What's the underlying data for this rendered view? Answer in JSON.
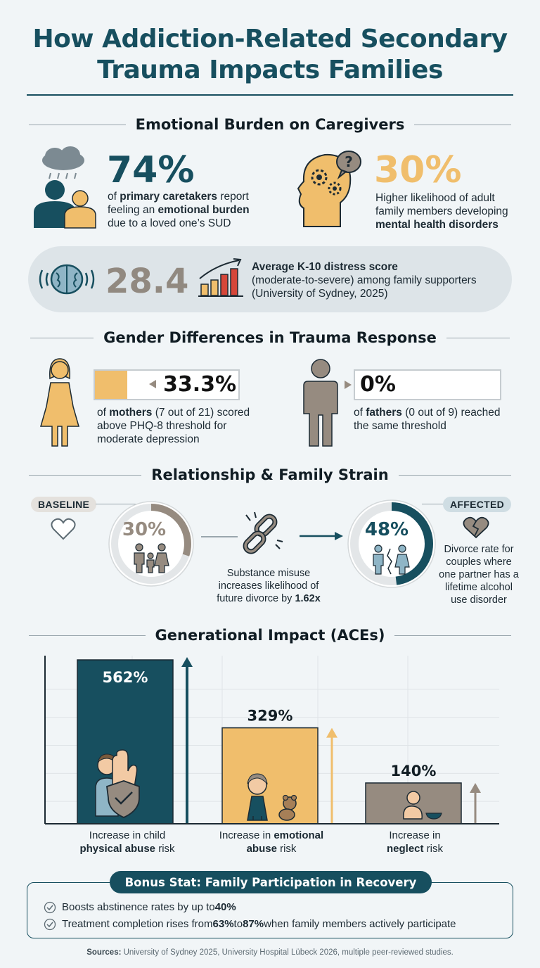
{
  "title_line1": "How Addiction-Related Secondary",
  "title_line2": "Trauma Impacts Families",
  "emotional": {
    "heading": "Emotional Burden on Caregivers",
    "stat1": {
      "value": "74%",
      "t1": "of ",
      "b1": "primary caretakers",
      "t2": " report feeling an ",
      "b2": "emotional burden",
      "t3": " due to a loved one’s SUD"
    },
    "stat2": {
      "value": "30%",
      "t1": "Higher likelihood of adult family members developing ",
      "b1": "mental health disorders"
    },
    "k10": {
      "value": "28.4",
      "title": "Average K-10 distress score",
      "line2": "(moderate-to-severe) among family supporters",
      "line3": "(University of Sydney, 2025)"
    }
  },
  "gender": {
    "heading": "Gender Differences in Trauma Response",
    "mothers": {
      "value": "33.3%",
      "fraction": 0.333,
      "t1": "of ",
      "b1": "mothers",
      "t2": " (7 out of 21) scored above PHQ-8 threshold for moderate depression"
    },
    "fathers": {
      "value": "0%",
      "fraction": 0,
      "t1": "of ",
      "b1": "fathers",
      "t2": " (0 out of 9) reached the same threshold"
    }
  },
  "relationship": {
    "heading": "Relationship & Family Strain",
    "baseline_label": "BASELINE",
    "baseline_value": "30%",
    "baseline_fraction": 0.3,
    "affected_label": "AFFECTED",
    "affected_value": "48%",
    "affected_fraction": 0.48,
    "middle_t1": "Substance misuse increases likelihood of future divorce by ",
    "middle_b1": "1.62x",
    "affected_desc": "Divorce rate for couples where one partner has a lifetime alcohol use disorder"
  },
  "generational": {
    "heading": "Generational Impact (ACEs)",
    "chart_data": {
      "type": "bar",
      "categories": [
        "Increase in child physical abuse risk",
        "Increase in emotional abuse risk",
        "Increase in neglect risk"
      ],
      "values": [
        562,
        329,
        140
      ],
      "value_labels": [
        "562%",
        "329%",
        "140%"
      ],
      "ylim": [
        0,
        600
      ],
      "grid": true,
      "colors": [
        "#174f5f",
        "#f0be6c",
        "#968b80"
      ]
    },
    "labels": [
      {
        "t1": "Increase in child",
        "b1": "physical abuse",
        "t2": " risk"
      },
      {
        "t1": "Increase in ",
        "b1": "emotional",
        "t2": "abuse",
        "t3": " risk"
      },
      {
        "t1": "Increase in",
        "b1": "neglect",
        "t2": " risk"
      }
    ]
  },
  "bonus": {
    "heading": "Bonus Stat: Family Participation in Recovery",
    "item1_t1": "Boosts abstinence rates by up to ",
    "item1_b1": "40%",
    "item2_t1": "Treatment completion rises from ",
    "item2_b1": "63%",
    "item2_t2": " to ",
    "item2_b2": "87%",
    "item2_t3": " when family members actively participate"
  },
  "sources": {
    "label": "Sources:",
    "text": " University of Sydney 2025, University Hospital Lübeck 2026, multiple peer-reviewed studies."
  },
  "colors": {
    "teal": "#174f5f",
    "yellow": "#f0be6c",
    "taupe": "#968b80",
    "red": "#d6473a"
  }
}
